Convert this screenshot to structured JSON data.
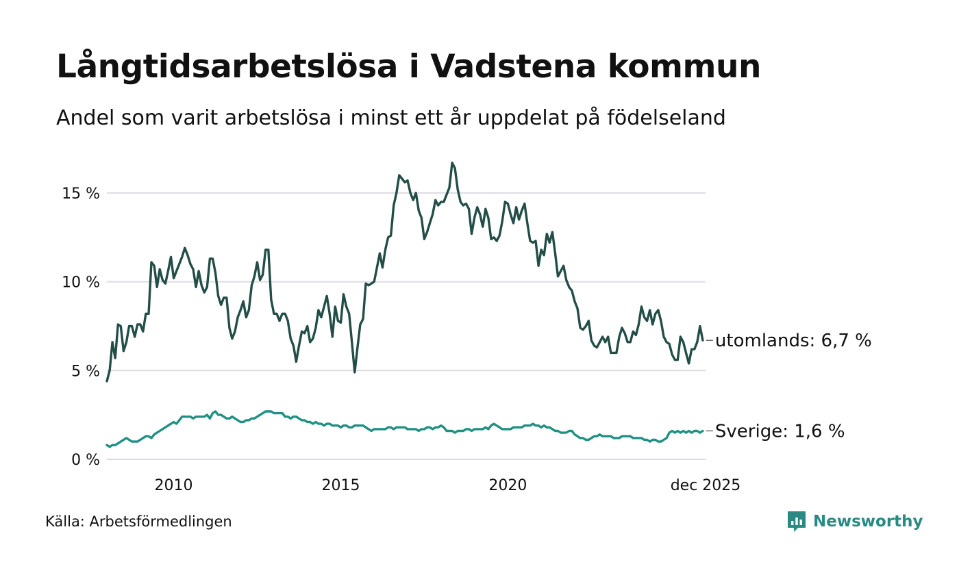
{
  "title": "Långtidsarbetslösa i Vadstena kommun",
  "subtitle": "Andel som varit arbetslösa i minst ett år uppdelat på födelseland",
  "source": "Källa: Arbetsförmedlingen",
  "brand": {
    "name": "Newsworthy",
    "icon": "newsworthy-logo-icon"
  },
  "colors": {
    "utomlands": "#234d47",
    "sverige": "#1f9082",
    "grid": "#dcdce4",
    "text": "#111111",
    "brand": "#2a8a83"
  },
  "chart_data": {
    "type": "line",
    "title": "Långtidsarbetslösa i Vadstena kommun",
    "subtitle": "Andel som varit arbetslösa i minst ett år uppdelat på födelseland",
    "x_start": 2008.0,
    "x_step": 0.0833333,
    "xlim": [
      2008.0,
      2025.917
    ],
    "ylim": [
      0,
      16.8
    ],
    "grid": true,
    "x_ticks": [
      {
        "value": 2010,
        "label": "2010"
      },
      {
        "value": 2015,
        "label": "2015"
      },
      {
        "value": 2020,
        "label": "2020"
      },
      {
        "value": 2025.917,
        "label": "dec 2025"
      }
    ],
    "y_ticks": [
      {
        "value": 0,
        "label": "0 %"
      },
      {
        "value": 5,
        "label": "5 %"
      },
      {
        "value": 10,
        "label": "10 %"
      },
      {
        "value": 15,
        "label": "15 %"
      }
    ],
    "series": [
      {
        "name": "utomlands",
        "end_label": "utomlands: 6,7 %",
        "color": "#234d47",
        "values": [
          4.4,
          5.0,
          6.6,
          5.7,
          7.6,
          7.5,
          6.1,
          6.6,
          7.5,
          7.5,
          6.9,
          7.6,
          7.6,
          7.2,
          8.2,
          8.2,
          11.1,
          10.9,
          9.7,
          10.7,
          10.1,
          9.9,
          10.6,
          11.4,
          10.2,
          10.6,
          11.0,
          11.4,
          11.9,
          11.5,
          11.0,
          10.7,
          9.7,
          10.6,
          9.8,
          9.4,
          9.7,
          11.3,
          11.3,
          10.5,
          9.2,
          8.7,
          9.1,
          9.1,
          7.4,
          6.8,
          7.2,
          8.0,
          8.4,
          8.9,
          8.0,
          8.4,
          9.8,
          10.3,
          11.1,
          10.1,
          10.4,
          11.8,
          11.8,
          9.0,
          8.2,
          8.2,
          7.8,
          8.2,
          8.2,
          7.8,
          6.8,
          6.4,
          5.5,
          6.4,
          7.2,
          7.1,
          7.5,
          6.6,
          6.8,
          7.4,
          8.4,
          8.0,
          8.6,
          9.2,
          8.2,
          6.9,
          8.6,
          7.8,
          7.7,
          9.3,
          8.6,
          8.2,
          6.6,
          4.9,
          6.3,
          7.6,
          7.9,
          9.9,
          9.8,
          9.9,
          10.0,
          10.8,
          11.6,
          10.8,
          11.8,
          12.5,
          12.6,
          14.3,
          15.0,
          16.0,
          15.8,
          15.6,
          15.7,
          15.0,
          14.6,
          15.0,
          14.0,
          13.6,
          12.4,
          12.8,
          13.3,
          13.8,
          14.6,
          14.3,
          14.5,
          14.5,
          14.9,
          15.3,
          16.7,
          16.4,
          15.2,
          14.5,
          14.3,
          14.4,
          14.1,
          12.7,
          13.6,
          14.2,
          13.8,
          13.1,
          14.1,
          13.6,
          12.4,
          12.5,
          12.3,
          12.6,
          13.4,
          14.5,
          14.4,
          13.8,
          13.3,
          14.2,
          13.5,
          14.0,
          14.4,
          13.3,
          12.3,
          12.2,
          12.3,
          10.9,
          11.8,
          11.5,
          12.7,
          12.2,
          12.8,
          11.6,
          10.3,
          10.6,
          10.9,
          10.1,
          9.7,
          9.5,
          8.9,
          8.5,
          7.4,
          7.3,
          7.5,
          7.8,
          6.7,
          6.4,
          6.3,
          6.6,
          6.9,
          6.6,
          6.9,
          6.0,
          6.0,
          6.0,
          6.9,
          7.4,
          7.1,
          6.6,
          6.6,
          7.2,
          7.0,
          7.6,
          8.6,
          8.0,
          7.8,
          8.4,
          7.6,
          8.2,
          8.4,
          7.8,
          6.9,
          6.6,
          6.5,
          5.9,
          5.6,
          5.6,
          6.9,
          6.6,
          6.0,
          5.4,
          6.2,
          6.2,
          6.6,
          7.5,
          6.7
        ]
      },
      {
        "name": "Sverige",
        "end_label": "Sverige: 1,6 %",
        "color": "#1f9082",
        "values": [
          0.8,
          0.7,
          0.8,
          0.8,
          0.9,
          1.0,
          1.1,
          1.2,
          1.1,
          1.0,
          1.0,
          1.0,
          1.1,
          1.2,
          1.3,
          1.3,
          1.2,
          1.4,
          1.5,
          1.6,
          1.7,
          1.8,
          1.9,
          2.0,
          2.1,
          2.0,
          2.2,
          2.4,
          2.4,
          2.4,
          2.4,
          2.3,
          2.4,
          2.4,
          2.4,
          2.4,
          2.5,
          2.3,
          2.6,
          2.7,
          2.5,
          2.5,
          2.4,
          2.3,
          2.3,
          2.4,
          2.3,
          2.2,
          2.1,
          2.1,
          2.2,
          2.2,
          2.3,
          2.3,
          2.4,
          2.5,
          2.6,
          2.7,
          2.7,
          2.7,
          2.6,
          2.6,
          2.6,
          2.6,
          2.4,
          2.4,
          2.3,
          2.4,
          2.4,
          2.3,
          2.2,
          2.2,
          2.1,
          2.1,
          2.0,
          2.1,
          2.0,
          2.0,
          1.9,
          2.0,
          2.0,
          1.9,
          1.9,
          1.9,
          1.8,
          1.9,
          1.9,
          1.8,
          1.8,
          1.9,
          1.9,
          1.9,
          1.9,
          1.8,
          1.7,
          1.6,
          1.7,
          1.7,
          1.7,
          1.7,
          1.7,
          1.8,
          1.8,
          1.7,
          1.8,
          1.8,
          1.8,
          1.8,
          1.7,
          1.7,
          1.7,
          1.7,
          1.6,
          1.7,
          1.7,
          1.8,
          1.8,
          1.7,
          1.8,
          1.8,
          1.9,
          1.8,
          1.6,
          1.6,
          1.6,
          1.5,
          1.6,
          1.6,
          1.6,
          1.7,
          1.7,
          1.6,
          1.7,
          1.7,
          1.7,
          1.7,
          1.8,
          1.7,
          1.9,
          2.0,
          1.9,
          1.8,
          1.7,
          1.7,
          1.7,
          1.7,
          1.8,
          1.8,
          1.8,
          1.8,
          1.9,
          1.9,
          1.9,
          2.0,
          1.9,
          1.9,
          1.8,
          1.9,
          1.8,
          1.8,
          1.7,
          1.6,
          1.6,
          1.5,
          1.5,
          1.5,
          1.6,
          1.6,
          1.4,
          1.3,
          1.2,
          1.2,
          1.1,
          1.1,
          1.2,
          1.3,
          1.3,
          1.4,
          1.3,
          1.3,
          1.3,
          1.3,
          1.2,
          1.2,
          1.2,
          1.3,
          1.3,
          1.3,
          1.3,
          1.2,
          1.2,
          1.2,
          1.2,
          1.1,
          1.1,
          1.0,
          1.1,
          1.1,
          1.0,
          1.0,
          1.1,
          1.2,
          1.5,
          1.6,
          1.5,
          1.6,
          1.5,
          1.6,
          1.5,
          1.6,
          1.5,
          1.6,
          1.6,
          1.5,
          1.6
        ]
      }
    ]
  }
}
